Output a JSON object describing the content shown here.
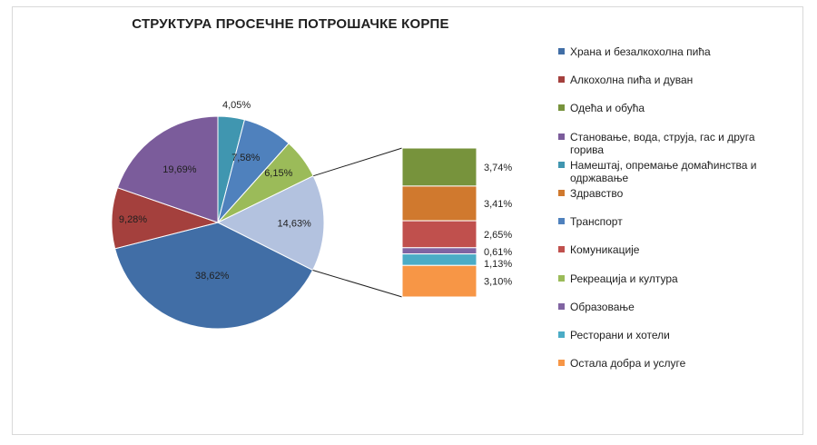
{
  "chart_data": {
    "type": "pie",
    "title": "СТРУКТУРА ПРОСЕЧНЕ ПОТРОШАЧКЕ КОРПЕ",
    "pie_slices": [
      {
        "label": "4,05%",
        "value": 4.05,
        "color": "#4096b0"
      },
      {
        "label": "7,58%",
        "value": 7.58,
        "color": "#4f81bd"
      },
      {
        "label": "6,15%",
        "value": 6.15,
        "color": "#9bbb59"
      },
      {
        "label": "14,63%",
        "value": 14.63,
        "color": "#b3c2df"
      },
      {
        "label": "38,62%",
        "value": 38.62,
        "color": "#416ea6"
      },
      {
        "label": "9,28%",
        "value": 9.28,
        "color": "#a4403d"
      },
      {
        "label": "19,69%",
        "value": 19.69,
        "color": "#7b5c9b"
      }
    ],
    "breakdown_bar": {
      "of_slice": "14,63%",
      "segments": [
        {
          "label": "3,74%",
          "value": 3.74,
          "color": "#77933c"
        },
        {
          "label": "3,41%",
          "value": 3.41,
          "color": "#d0792e"
        },
        {
          "label": "2,65%",
          "value": 2.65,
          "color": "#c0504d"
        },
        {
          "label": "0,61%",
          "value": 0.61,
          "color": "#8064a2"
        },
        {
          "label": "1,13%",
          "value": 1.13,
          "color": "#4bacc6"
        },
        {
          "label": "3,10%",
          "value": 3.1,
          "color": "#f79646"
        }
      ]
    },
    "legend": [
      {
        "label": "Храна и безалкохолна пића",
        "color": "#416ea6"
      },
      {
        "label": "Алкохолна пића и дуван",
        "color": "#a4403d"
      },
      {
        "label": "Одећа и обућа",
        "color": "#77933c"
      },
      {
        "label": "Становање, вода, струја, гас и друга горива",
        "color": "#7b5c9b"
      },
      {
        "label": "Намештај, опремање домаћинства и одржавање",
        "color": "#4096b0"
      },
      {
        "label": "Здравство",
        "color": "#d0792e"
      },
      {
        "label": "Транспорт",
        "color": "#4f81bd"
      },
      {
        "label": "Комуникације",
        "color": "#c0504d"
      },
      {
        "label": "Рекреација и култура",
        "color": "#9bbb59"
      },
      {
        "label": "Образовање",
        "color": "#8064a2"
      },
      {
        "label": "Ресторани и хотели",
        "color": "#4bacc6"
      },
      {
        "label": "Остала добра и услуге",
        "color": "#f79646"
      }
    ],
    "legend_position": "right"
  }
}
